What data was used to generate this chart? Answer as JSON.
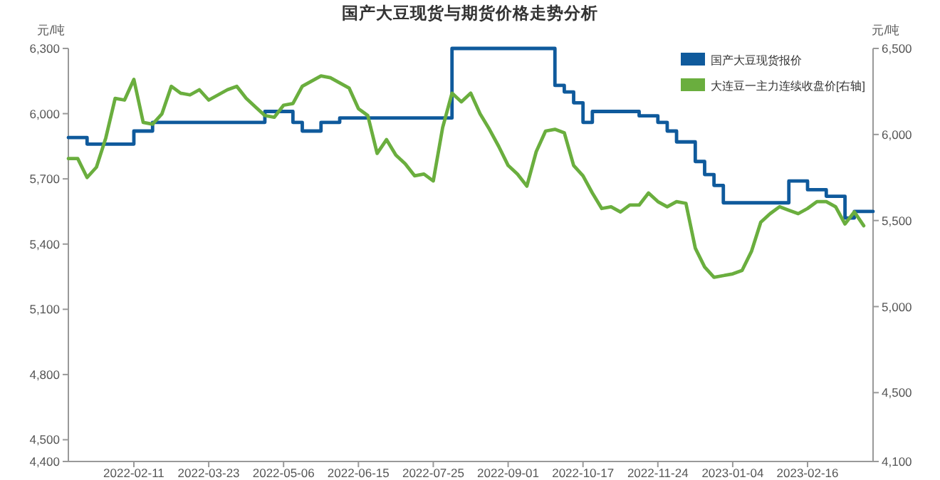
{
  "chart_data": {
    "type": "line",
    "title": "国产大豆现货与期货价格走势分析",
    "ylabel": "元/吨",
    "y2label": "元/吨",
    "categories": [
      null,
      null,
      null,
      null,
      null,
      null,
      null,
      "2022-02-11",
      null,
      null,
      null,
      null,
      null,
      null,
      null,
      "2022-03-23",
      null,
      null,
      null,
      null,
      null,
      null,
      null,
      "2022-05-06",
      null,
      null,
      null,
      null,
      null,
      null,
      null,
      "2022-06-15",
      null,
      null,
      null,
      null,
      null,
      null,
      null,
      "2022-07-25",
      null,
      null,
      null,
      null,
      null,
      null,
      null,
      "2022-09-01",
      null,
      null,
      null,
      null,
      null,
      null,
      null,
      "2022-10-17",
      null,
      null,
      null,
      null,
      null,
      null,
      null,
      "2022-11-24",
      null,
      null,
      null,
      null,
      null,
      null,
      null,
      "2023-01-04",
      null,
      null,
      null,
      null,
      null,
      null,
      null,
      "2023-02-16",
      null,
      null,
      null,
      null,
      null,
      null,
      null
    ],
    "series": [
      {
        "name": "国产大豆现货报价",
        "type": "step",
        "color": "#0f5a9c",
        "values": [
          5890,
          5890,
          5860,
          5860,
          5860,
          5860,
          5860,
          5920,
          5920,
          5960,
          5960,
          5960,
          5960,
          5960,
          5960,
          5960,
          5960,
          5960,
          5960,
          5960,
          5960,
          6010,
          6010,
          6010,
          5960,
          5920,
          5920,
          5960,
          5960,
          5980,
          5980,
          5980,
          5980,
          5980,
          5980,
          5980,
          5980,
          5980,
          5980,
          5980,
          5980,
          6300,
          6300,
          6300,
          6300,
          6300,
          6300,
          6300,
          6300,
          6300,
          6300,
          6300,
          6130,
          6100,
          6050,
          5960,
          6010,
          6010,
          6010,
          6010,
          6010,
          5990,
          5990,
          5960,
          5920,
          5870,
          5870,
          5780,
          5720,
          5670,
          5590,
          5590,
          5590,
          5590,
          5590,
          5590,
          5590,
          5690,
          5690,
          5650,
          5650,
          5620,
          5620,
          5520,
          5550,
          5550,
          5550
        ]
      },
      {
        "name": "大连豆一主力连续收盘价[右轴]",
        "axis": "y2",
        "color": "#6aae3e",
        "values": [
          5860,
          5860,
          5750,
          5810,
          5980,
          6210,
          6200,
          6320,
          6070,
          6060,
          6120,
          6280,
          6240,
          6230,
          6260,
          6200,
          6230,
          6260,
          6280,
          6210,
          6160,
          6110,
          6100,
          6170,
          6180,
          6280,
          6310,
          6340,
          6330,
          6300,
          6270,
          6150,
          6110,
          5890,
          5970,
          5880,
          5830,
          5760,
          5770,
          5730,
          6040,
          6240,
          6190,
          6240,
          6120,
          6030,
          5930,
          5820,
          5770,
          5700,
          5900,
          6020,
          6030,
          6010,
          5820,
          5760,
          5660,
          5570,
          5580,
          5550,
          5590,
          5590,
          5660,
          5610,
          5580,
          5610,
          5600,
          5340,
          5230,
          5170,
          5180,
          5190,
          5210,
          5320,
          5490,
          5540,
          5580,
          5560,
          5540,
          5570,
          5610,
          5610,
          5580,
          5480,
          5550,
          5470,
          null
        ]
      }
    ],
    "ylim": [
      4400,
      6300
    ],
    "yticks": [
      {
        "value": 4400,
        "label": "4,400"
      },
      {
        "value": 4500,
        "label": "4,500"
      },
      {
        "value": 4800,
        "label": "4,800"
      },
      {
        "value": 5100,
        "label": "5,100"
      },
      {
        "value": 5400,
        "label": "5,400"
      },
      {
        "value": 5700,
        "label": "5,700"
      },
      {
        "value": 6000,
        "label": "6,000"
      },
      {
        "value": 6300,
        "label": "6,300"
      }
    ],
    "y2lim": [
      4100,
      6500
    ],
    "y2ticks": [
      {
        "value": 4100,
        "label": "4,100"
      },
      {
        "value": 4500,
        "label": "4,500"
      },
      {
        "value": 5000,
        "label": "5,000"
      },
      {
        "value": 5500,
        "label": "5,500"
      },
      {
        "value": 6000,
        "label": "6,000"
      },
      {
        "value": 6500,
        "label": "6,500"
      }
    ],
    "legend": "top right"
  }
}
